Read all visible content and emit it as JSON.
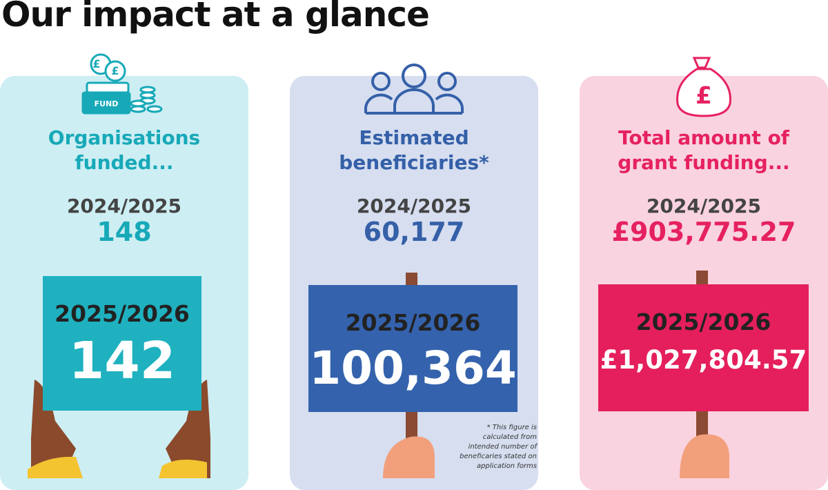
{
  "title": "Our impact at a glance",
  "cards": [
    {
      "heading": [
        "Organisations",
        "funded..."
      ],
      "prev_year": "2024/2025",
      "prev_value": "148",
      "curr_year": "2025/2026",
      "curr_value": "142",
      "icon_label": "FUND"
    },
    {
      "heading": [
        "Estimated",
        "beneficiaries*"
      ],
      "prev_year": "2024/2025",
      "prev_value": "60,177",
      "curr_year": "2025/2026",
      "curr_value": "100,364",
      "footnote": [
        "* This figure is",
        "calculated from",
        "intended number of",
        "beneficaries stated on",
        "application forms"
      ]
    },
    {
      "heading": [
        "Total amount of",
        "grant funding..."
      ],
      "prev_year": "2024/2025",
      "prev_value": "£903,775.27",
      "curr_year": "2025/2026",
      "curr_value": "£1,027,804.57"
    }
  ]
}
